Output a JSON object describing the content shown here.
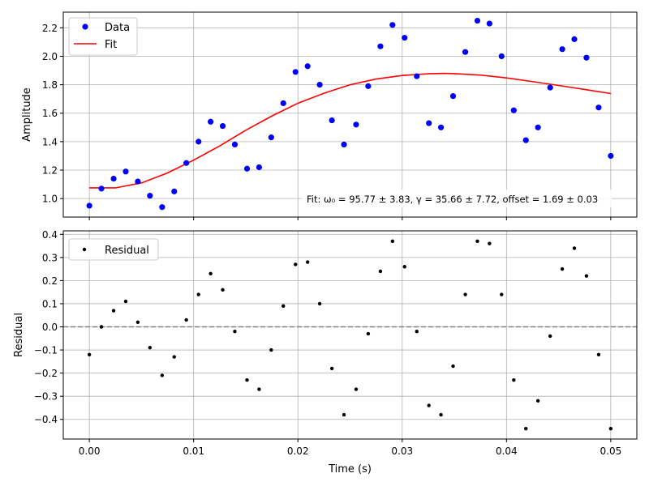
{
  "chart_data": [
    {
      "type": "scatter",
      "panel": "top",
      "title": "",
      "xlabel": "",
      "ylabel": "Amplitude",
      "xlim": [
        -0.0025,
        0.0525
      ],
      "ylim": [
        0.87,
        2.31
      ],
      "xticks": [
        0.0,
        0.01,
        0.02,
        0.03,
        0.04,
        0.05
      ],
      "xtick_labels": [
        "0.00",
        "0.01",
        "0.02",
        "0.03",
        "0.04",
        "0.05"
      ],
      "show_xtick_labels": false,
      "yticks": [
        1.0,
        1.2,
        1.4,
        1.6,
        1.8,
        2.0,
        2.2
      ],
      "ytick_labels": [
        "1.0",
        "1.2",
        "1.4",
        "1.6",
        "1.8",
        "2.0",
        "2.2"
      ],
      "grid": true,
      "legend_position": "upper-left",
      "series": [
        {
          "name": "Data",
          "kind": "scatter",
          "color": "#0000ff",
          "x": [
            0.0,
            0.00116,
            0.00233,
            0.00349,
            0.00465,
            0.00581,
            0.00698,
            0.00814,
            0.0093,
            0.01047,
            0.01163,
            0.01279,
            0.01395,
            0.01512,
            0.01628,
            0.01744,
            0.0186,
            0.01977,
            0.02093,
            0.02209,
            0.02326,
            0.02442,
            0.02558,
            0.02674,
            0.02791,
            0.02907,
            0.03023,
            0.0314,
            0.03256,
            0.03372,
            0.03488,
            0.03605,
            0.03721,
            0.03837,
            0.03953,
            0.0407,
            0.04186,
            0.04302,
            0.04419,
            0.04535,
            0.04651,
            0.04767,
            0.04884,
            0.05
          ],
          "y": [
            0.95,
            1.07,
            1.14,
            1.19,
            1.12,
            1.02,
            0.94,
            1.05,
            1.25,
            1.4,
            1.54,
            1.51,
            1.38,
            1.21,
            1.22,
            1.43,
            1.67,
            1.89,
            1.93,
            1.8,
            1.55,
            1.38,
            1.52,
            1.79,
            2.07,
            2.22,
            2.13,
            1.86,
            1.53,
            1.5,
            1.72,
            2.03,
            2.25,
            2.23,
            2.0,
            1.62,
            1.41,
            1.5,
            1.78,
            2.05,
            2.12,
            1.99,
            1.64,
            1.3
          ]
        },
        {
          "name": "Fit",
          "kind": "line",
          "color": "#ff0000",
          "x": [
            0.0,
            0.0025,
            0.005,
            0.0075,
            0.01,
            0.0125,
            0.015,
            0.0175,
            0.02,
            0.0225,
            0.025,
            0.0275,
            0.03,
            0.0325,
            0.034,
            0.035,
            0.0375,
            0.04,
            0.0425,
            0.045,
            0.0475,
            0.05
          ],
          "y": [
            1.075,
            1.075,
            1.11,
            1.18,
            1.27,
            1.37,
            1.48,
            1.58,
            1.67,
            1.74,
            1.8,
            1.84,
            1.865,
            1.877,
            1.88,
            1.878,
            1.868,
            1.848,
            1.822,
            1.795,
            1.767,
            1.738
          ]
        }
      ],
      "annotation": "Fit: ω₀ = 95.77 ± 3.83, γ = 35.66 ± 7.72, offset = 1.69 ± 0.03"
    },
    {
      "type": "scatter",
      "panel": "bottom",
      "title": "",
      "xlabel": "Time (s)",
      "ylabel": "Residual",
      "xlim": [
        -0.0025,
        0.0525
      ],
      "ylim": [
        -0.485,
        0.415
      ],
      "xticks": [
        0.0,
        0.01,
        0.02,
        0.03,
        0.04,
        0.05
      ],
      "xtick_labels": [
        "0.00",
        "0.01",
        "0.02",
        "0.03",
        "0.04",
        "0.05"
      ],
      "show_xtick_labels": true,
      "yticks": [
        -0.4,
        -0.3,
        -0.2,
        -0.1,
        0.0,
        0.1,
        0.2,
        0.3,
        0.4
      ],
      "ytick_labels": [
        "−0.4",
        "−0.3",
        "−0.2",
        "−0.1",
        "0.0",
        "0.1",
        "0.2",
        "0.3",
        "0.4"
      ],
      "grid": true,
      "legend_position": "upper-left",
      "reference_line": {
        "y": 0,
        "style": "dashed",
        "color": "#808080"
      },
      "series": [
        {
          "name": "Residual",
          "kind": "scatter",
          "color": "#000000",
          "x": [
            0.0,
            0.00116,
            0.00233,
            0.00349,
            0.00465,
            0.00581,
            0.00698,
            0.00814,
            0.0093,
            0.01047,
            0.01163,
            0.01279,
            0.01395,
            0.01512,
            0.01628,
            0.01744,
            0.0186,
            0.01977,
            0.02093,
            0.02209,
            0.02326,
            0.02442,
            0.02558,
            0.02674,
            0.02791,
            0.02907,
            0.03023,
            0.0314,
            0.03256,
            0.03372,
            0.03488,
            0.03605,
            0.03721,
            0.03837,
            0.03953,
            0.0407,
            0.04186,
            0.04302,
            0.04419,
            0.04535,
            0.04651,
            0.04767,
            0.04884,
            0.05
          ],
          "y": [
            -0.12,
            0.0,
            0.07,
            0.11,
            0.02,
            -0.09,
            -0.21,
            -0.13,
            0.03,
            0.14,
            0.23,
            0.16,
            -0.02,
            -0.23,
            -0.27,
            -0.1,
            0.09,
            0.27,
            0.28,
            0.1,
            -0.18,
            -0.38,
            -0.27,
            -0.03,
            0.24,
            0.37,
            0.26,
            -0.02,
            -0.34,
            -0.38,
            -0.17,
            0.14,
            0.37,
            0.36,
            0.14,
            -0.23,
            -0.44,
            -0.32,
            -0.04,
            0.25,
            0.34,
            0.22,
            -0.12,
            -0.44
          ]
        }
      ]
    }
  ]
}
